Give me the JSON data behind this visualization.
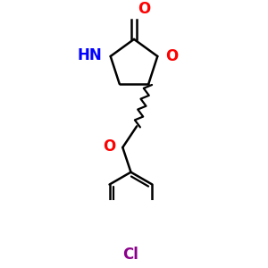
{
  "bg_color": "#ffffff",
  "atom_colors": {
    "O": "#ff0000",
    "N": "#0000ff",
    "Cl": "#8B008B",
    "C": "#000000"
  },
  "font_size_atoms": 11,
  "line_width": 1.8,
  "fig_width": 3.0,
  "fig_height": 3.0,
  "dpi": 100
}
